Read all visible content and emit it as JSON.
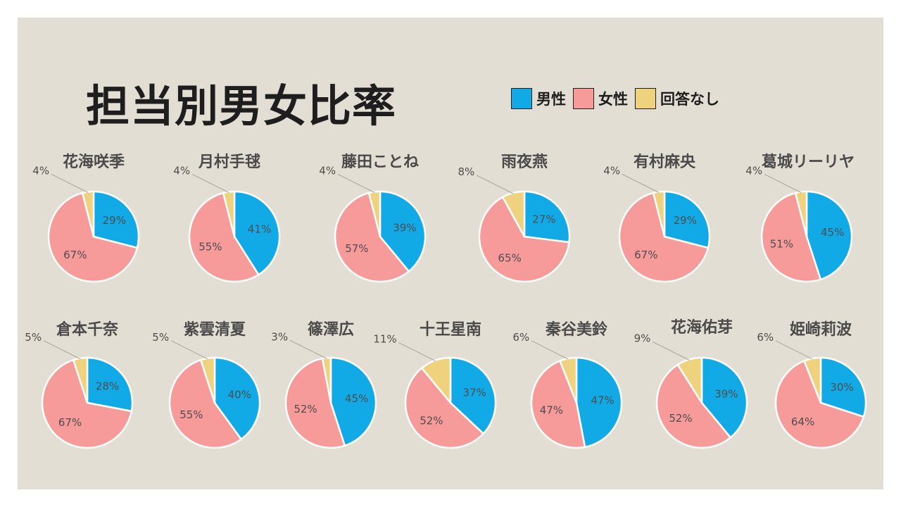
{
  "title": "担当別男女比率",
  "legend": [
    {
      "label": "男性",
      "color": "#11a9e6"
    },
    {
      "label": "女性",
      "color": "#f79a9a"
    },
    {
      "label": "回答なし",
      "color": "#efd27e"
    }
  ],
  "chart_data": [
    {
      "type": "pie",
      "title": "花海咲季",
      "labels": [
        "男性",
        "女性",
        "回答なし"
      ],
      "values": [
        29,
        67,
        4
      ],
      "value_labels": [
        "29%",
        "67%",
        "4%"
      ]
    },
    {
      "type": "pie",
      "title": "月村手毬",
      "labels": [
        "男性",
        "女性",
        "回答なし"
      ],
      "values": [
        41,
        55,
        4
      ],
      "value_labels": [
        "41%",
        "55%",
        "4%"
      ]
    },
    {
      "type": "pie",
      "title": "藤田ことね",
      "labels": [
        "男性",
        "女性",
        "回答なし"
      ],
      "values": [
        39,
        57,
        4
      ],
      "value_labels": [
        "39%",
        "57%",
        "4%"
      ]
    },
    {
      "type": "pie",
      "title": "雨夜燕",
      "labels": [
        "男性",
        "女性",
        "回答なし"
      ],
      "values": [
        27,
        65,
        8
      ],
      "value_labels": [
        "27%",
        "65%",
        "8%"
      ]
    },
    {
      "type": "pie",
      "title": "有村麻央",
      "labels": [
        "男性",
        "女性",
        "回答なし"
      ],
      "values": [
        29,
        67,
        4
      ],
      "value_labels": [
        "29%",
        "67%",
        "4%"
      ]
    },
    {
      "type": "pie",
      "title": "葛城リーリヤ",
      "labels": [
        "男性",
        "女性",
        "回答なし"
      ],
      "values": [
        45,
        51,
        4
      ],
      "value_labels": [
        "45%",
        "51%",
        "4%"
      ]
    },
    {
      "type": "pie",
      "title": "倉本千奈",
      "labels": [
        "男性",
        "女性",
        "回答なし"
      ],
      "values": [
        28,
        67,
        5
      ],
      "value_labels": [
        "28%",
        "67%",
        "5%"
      ]
    },
    {
      "type": "pie",
      "title": "紫雲清夏",
      "labels": [
        "男性",
        "女性",
        "回答なし"
      ],
      "values": [
        40,
        55,
        5
      ],
      "value_labels": [
        "40%",
        "55%",
        "5%"
      ]
    },
    {
      "type": "pie",
      "title": "篠澤広",
      "labels": [
        "男性",
        "女性",
        "回答なし"
      ],
      "values": [
        45,
        52,
        3
      ],
      "value_labels": [
        "45%",
        "52%",
        "3%"
      ]
    },
    {
      "type": "pie",
      "title": "十王星南",
      "labels": [
        "男性",
        "女性",
        "回答なし"
      ],
      "values": [
        37,
        52,
        11
      ],
      "value_labels": [
        "37%",
        "52%",
        "11%"
      ]
    },
    {
      "type": "pie",
      "title": "秦谷美鈴",
      "labels": [
        "男性",
        "女性",
        "回答なし"
      ],
      "values": [
        47,
        47,
        6
      ],
      "value_labels": [
        "47%",
        "47%",
        "6%"
      ]
    },
    {
      "type": "pie",
      "title": "花海佑芽",
      "labels": [
        "男性",
        "女性",
        "回答なし"
      ],
      "values": [
        39,
        52,
        9
      ],
      "value_labels": [
        "39%",
        "52%",
        "9%"
      ]
    },
    {
      "type": "pie",
      "title": "姫崎莉波",
      "labels": [
        "男性",
        "女性",
        "回答なし"
      ],
      "values": [
        30,
        64,
        6
      ],
      "value_labels": [
        "30%",
        "64%",
        "6%"
      ]
    }
  ]
}
